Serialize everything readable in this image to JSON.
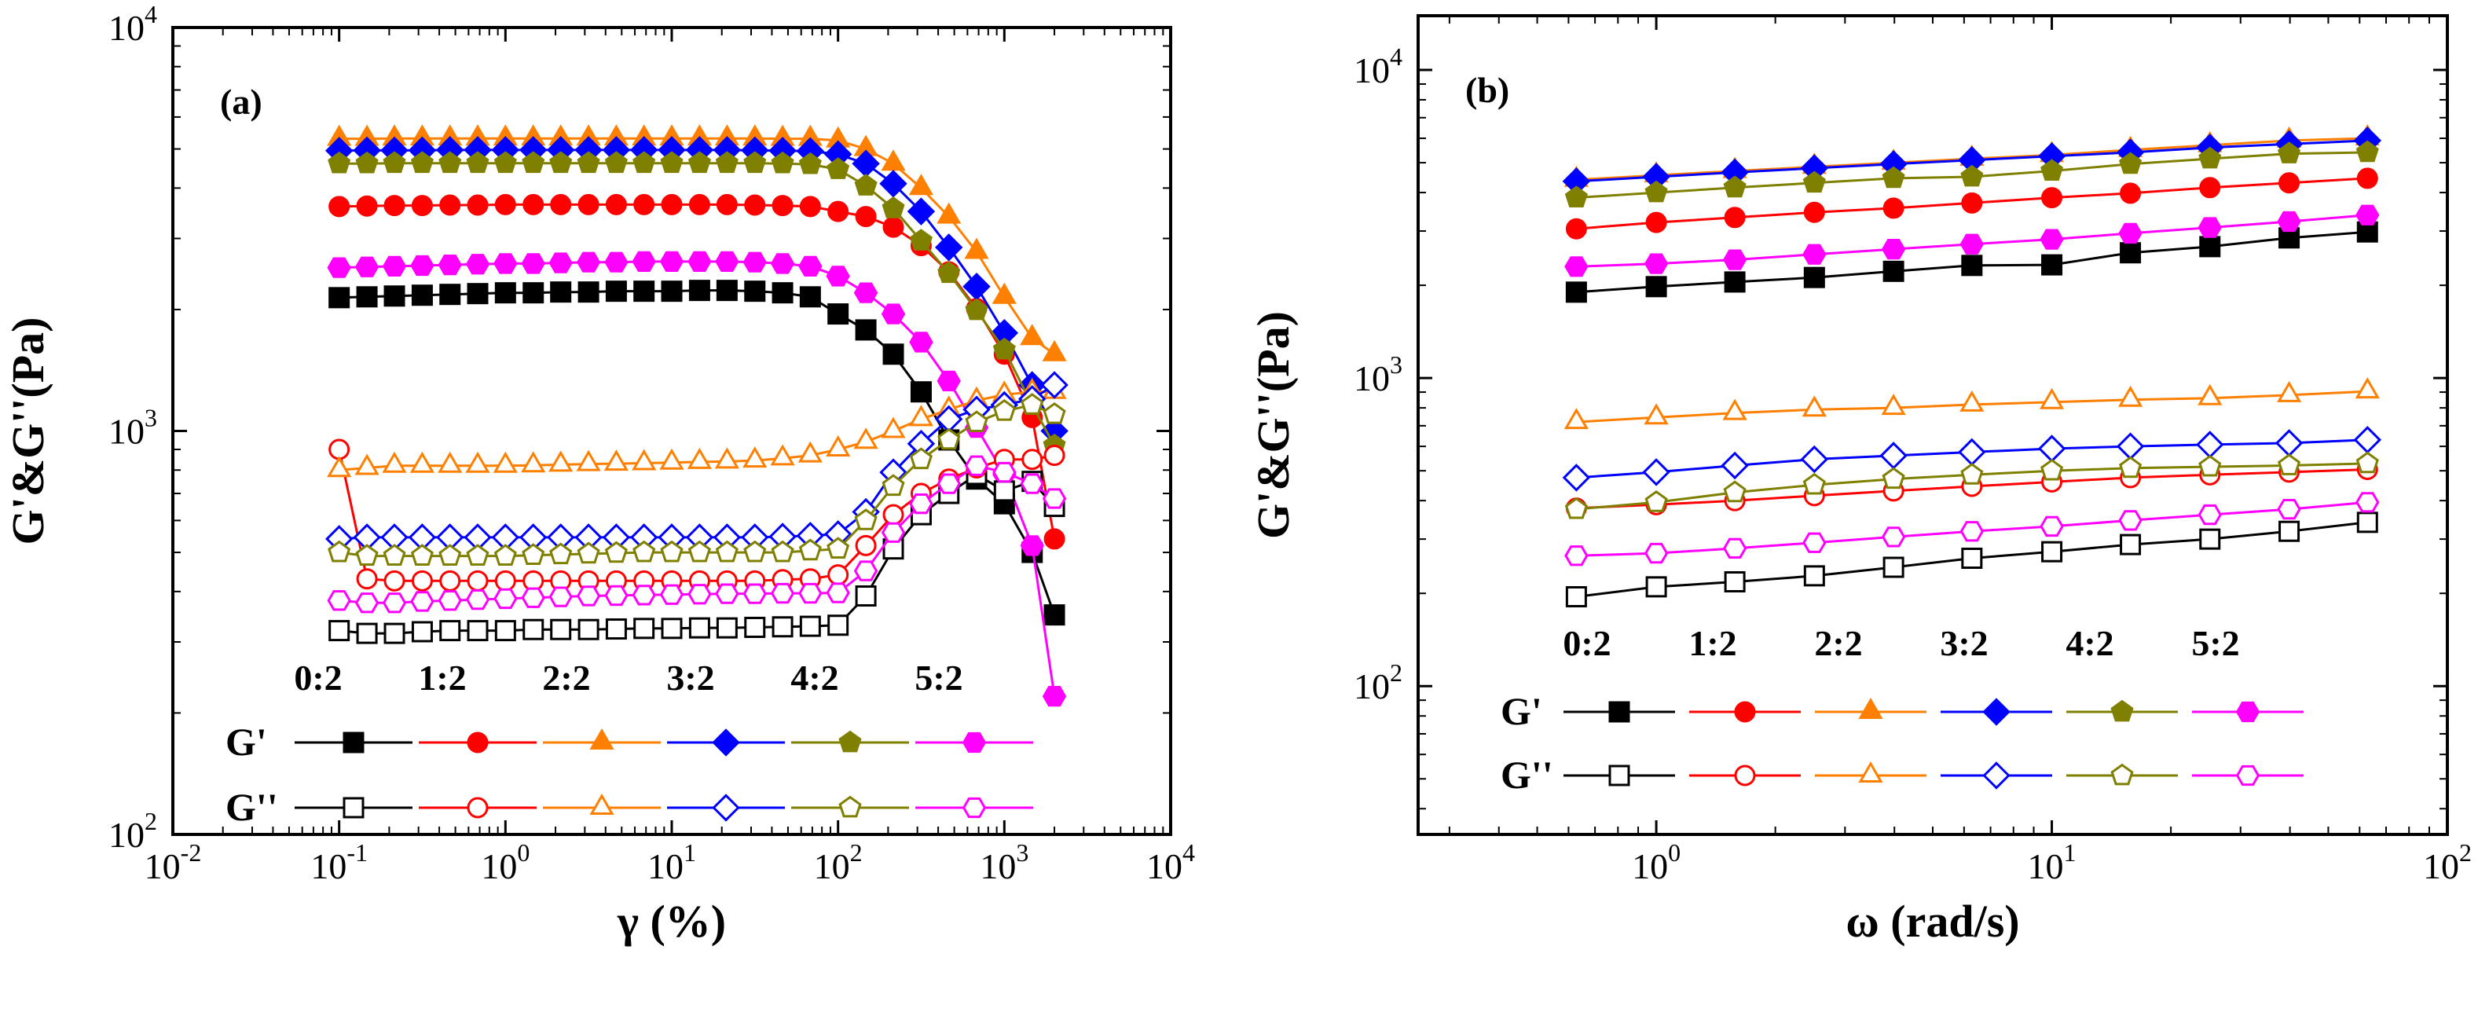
{
  "series_styles": [
    {
      "ratio": "0:2",
      "color": "#000000",
      "marker": "square"
    },
    {
      "ratio": "1:2",
      "color": "#ff0000",
      "marker": "circle"
    },
    {
      "ratio": "2:2",
      "color": "#ff8000",
      "marker": "triangle"
    },
    {
      "ratio": "3:2",
      "color": "#0000ff",
      "marker": "diamond"
    },
    {
      "ratio": "4:2",
      "color": "#808000",
      "marker": "pentagon"
    },
    {
      "ratio": "5:2",
      "color": "#ff00ff",
      "marker": "hexagon"
    }
  ],
  "chart_data": [
    {
      "panel_label": "(a)",
      "type": "line",
      "xscale": "log",
      "yscale": "log",
      "xlim": [
        0.01,
        10000
      ],
      "ylim": [
        100,
        10000
      ],
      "xticks": [
        {
          "base": "10",
          "exp": "-2"
        },
        {
          "base": "10",
          "exp": "-1"
        },
        {
          "base": "10",
          "exp": "0"
        },
        {
          "base": "10",
          "exp": "1"
        },
        {
          "base": "10",
          "exp": "2"
        },
        {
          "base": "10",
          "exp": "3"
        },
        {
          "base": "10",
          "exp": "4"
        }
      ],
      "yticks": [
        {
          "base": "10",
          "exp": "2"
        },
        {
          "base": "10",
          "exp": "3"
        },
        {
          "base": "10",
          "exp": "4"
        }
      ],
      "xlabel": "γ (%)",
      "ylabel": "G'&G''(Pa)",
      "legend": {
        "placement": "bottom-center",
        "ratios": [
          "0:2",
          "1:2",
          "2:2",
          "3:2",
          "4:2",
          "5:2"
        ],
        "row_labels": [
          "G'",
          "G''"
        ]
      },
      "x": [
        0.1,
        0.147,
        0.215,
        0.316,
        0.464,
        0.681,
        1,
        1.47,
        2.15,
        3.16,
        4.64,
        6.81,
        10,
        14.7,
        21.5,
        31.6,
        46.4,
        68.1,
        100,
        147,
        215,
        316,
        464,
        681,
        1000,
        1470,
        2000
      ],
      "series": [
        {
          "name": "G' 0:2",
          "ratio": "0:2",
          "modulus": "G'",
          "values": [
            2140,
            2150,
            2160,
            2170,
            2180,
            2190,
            2200,
            2200,
            2210,
            2210,
            2220,
            2220,
            2220,
            2230,
            2230,
            2220,
            2200,
            2150,
            1950,
            1780,
            1550,
            1250,
            950,
            760,
            660,
            500,
            350
          ]
        },
        {
          "name": "G' 1:2",
          "ratio": "1:2",
          "modulus": "G'",
          "values": [
            3600,
            3610,
            3620,
            3620,
            3630,
            3630,
            3640,
            3640,
            3640,
            3640,
            3640,
            3640,
            3640,
            3640,
            3640,
            3630,
            3620,
            3600,
            3500,
            3400,
            3200,
            2880,
            2480,
            2010,
            1550,
            1080,
            540
          ]
        },
        {
          "name": "G' 2:2",
          "ratio": "2:2",
          "modulus": "G'",
          "values": [
            5300,
            5300,
            5310,
            5310,
            5310,
            5310,
            5310,
            5310,
            5310,
            5310,
            5310,
            5310,
            5310,
            5310,
            5310,
            5310,
            5300,
            5300,
            5250,
            5000,
            4600,
            4000,
            3400,
            2780,
            2150,
            1700,
            1550
          ]
        },
        {
          "name": "G' 3:2",
          "ratio": "3:2",
          "modulus": "G'",
          "values": [
            4950,
            4960,
            4960,
            4960,
            4970,
            4970,
            4970,
            4970,
            4970,
            4970,
            4970,
            4970,
            4970,
            4970,
            4970,
            4960,
            4950,
            4940,
            4850,
            4600,
            4100,
            3500,
            2850,
            2280,
            1750,
            1300,
            1000
          ]
        },
        {
          "name": "G' 4:2",
          "ratio": "4:2",
          "modulus": "G'",
          "values": [
            4600,
            4600,
            4610,
            4610,
            4610,
            4610,
            4610,
            4610,
            4610,
            4610,
            4610,
            4610,
            4610,
            4610,
            4610,
            4610,
            4600,
            4580,
            4450,
            4050,
            3560,
            2960,
            2460,
            1990,
            1590,
            1160,
            920
          ]
        },
        {
          "name": "G' 5:2",
          "ratio": "5:2",
          "modulus": "G'",
          "values": [
            2540,
            2550,
            2560,
            2570,
            2580,
            2590,
            2600,
            2600,
            2610,
            2620,
            2620,
            2630,
            2630,
            2630,
            2630,
            2620,
            2600,
            2560,
            2420,
            2200,
            1950,
            1660,
            1330,
            1020,
            780,
            520,
            220
          ]
        },
        {
          "name": "G'' 0:2",
          "ratio": "0:2",
          "modulus": "G''",
          "values": [
            320,
            315,
            315,
            318,
            320,
            320,
            320,
            322,
            322,
            322,
            323,
            324,
            324,
            325,
            325,
            326,
            327,
            328,
            330,
            390,
            510,
            620,
            700,
            780,
            710,
            750,
            650
          ]
        },
        {
          "name": "G'' 1:2",
          "ratio": "1:2",
          "modulus": "G''",
          "values": [
            900,
            430,
            425,
            425,
            425,
            425,
            425,
            425,
            425,
            425,
            425,
            425,
            425,
            425,
            425,
            425,
            428,
            430,
            440,
            520,
            620,
            700,
            760,
            810,
            850,
            850,
            870
          ]
        },
        {
          "name": "G'' 2:2",
          "ratio": "2:2",
          "modulus": "G''",
          "values": [
            800,
            810,
            820,
            820,
            820,
            820,
            820,
            822,
            825,
            828,
            830,
            832,
            835,
            838,
            840,
            845,
            855,
            870,
            900,
            940,
            1000,
            1070,
            1130,
            1190,
            1230,
            1250,
            1250
          ]
        },
        {
          "name": "G'' 3:2",
          "ratio": "3:2",
          "modulus": "G''",
          "values": [
            540,
            545,
            545,
            545,
            545,
            545,
            545,
            545,
            545,
            545,
            545,
            545,
            545,
            545,
            545,
            545,
            547,
            550,
            555,
            630,
            790,
            930,
            1070,
            1130,
            1160,
            1200,
            1300
          ]
        },
        {
          "name": "G'' 4:2",
          "ratio": "4:2",
          "modulus": "G''",
          "values": [
            500,
            490,
            490,
            490,
            490,
            490,
            490,
            492,
            494,
            496,
            498,
            500,
            500,
            500,
            500,
            500,
            500,
            505,
            510,
            600,
            730,
            850,
            950,
            1050,
            1120,
            1160,
            1100
          ]
        },
        {
          "name": "G'' 5:2",
          "ratio": "5:2",
          "modulus": "G''",
          "values": [
            380,
            375,
            375,
            378,
            380,
            382,
            384,
            386,
            388,
            390,
            391,
            392,
            393,
            394,
            395,
            395,
            396,
            396,
            397,
            450,
            560,
            660,
            740,
            820,
            790,
            740,
            680
          ]
        }
      ]
    },
    {
      "panel_label": "(b)",
      "type": "line",
      "xscale": "log",
      "yscale": "log",
      "xlim": [
        0.25,
        100
      ],
      "ylim": [
        33,
        15000
      ],
      "xticks": [
        {
          "base": "10",
          "exp": "0"
        },
        {
          "base": "10",
          "exp": "1"
        },
        {
          "base": "10",
          "exp": "2"
        }
      ],
      "yticks": [
        {
          "base": "10",
          "exp": "2"
        },
        {
          "base": "10",
          "exp": "3"
        },
        {
          "base": "10",
          "exp": "4"
        }
      ],
      "xlabel": "ω (rad/s)",
      "ylabel": "G'&G''(Pa)",
      "legend": {
        "placement": "bottom-center",
        "ratios": [
          "0:2",
          "1:2",
          "2:2",
          "3:2",
          "4:2",
          "5:2"
        ],
        "row_labels": [
          "G'",
          "G''"
        ]
      },
      "x": [
        0.628,
        1,
        1.58,
        2.51,
        3.98,
        6.28,
        10,
        15.8,
        25.1,
        39.8,
        62.8
      ],
      "series": [
        {
          "name": "G' 0:2",
          "ratio": "0:2",
          "modulus": "G'",
          "values": [
            1900,
            1980,
            2050,
            2120,
            2220,
            2320,
            2330,
            2550,
            2670,
            2850,
            2980
          ]
        },
        {
          "name": "G' 1:2",
          "ratio": "1:2",
          "modulus": "G'",
          "values": [
            3050,
            3200,
            3320,
            3450,
            3560,
            3700,
            3850,
            3980,
            4150,
            4300,
            4450
          ]
        },
        {
          "name": "G' 2:2",
          "ratio": "2:2",
          "modulus": "G'",
          "values": [
            4400,
            4550,
            4700,
            4850,
            5000,
            5150,
            5300,
            5500,
            5700,
            5900,
            6000
          ]
        },
        {
          "name": "G' 3:2",
          "ratio": "3:2",
          "modulus": "G'",
          "values": [
            4350,
            4500,
            4650,
            4800,
            4950,
            5100,
            5250,
            5400,
            5600,
            5750,
            5900
          ]
        },
        {
          "name": "G' 4:2",
          "ratio": "4:2",
          "modulus": "G'",
          "values": [
            3850,
            4000,
            4150,
            4300,
            4450,
            4500,
            4700,
            4950,
            5150,
            5350,
            5400
          ]
        },
        {
          "name": "G' 5:2",
          "ratio": "5:2",
          "modulus": "G'",
          "values": [
            2300,
            2350,
            2420,
            2520,
            2620,
            2720,
            2820,
            2950,
            3080,
            3220,
            3380
          ]
        },
        {
          "name": "G'' 0:2",
          "ratio": "0:2",
          "modulus": "G''",
          "values": [
            195,
            210,
            218,
            228,
            243,
            260,
            273,
            288,
            300,
            318,
            340
          ]
        },
        {
          "name": "G'' 1:2",
          "ratio": "1:2",
          "modulus": "G''",
          "values": [
            378,
            388,
            400,
            415,
            430,
            445,
            460,
            475,
            485,
            495,
            505
          ]
        },
        {
          "name": "G'' 2:2",
          "ratio": "2:2",
          "modulus": "G''",
          "values": [
            720,
            745,
            770,
            790,
            800,
            820,
            835,
            850,
            860,
            880,
            905
          ]
        },
        {
          "name": "G'' 3:2",
          "ratio": "3:2",
          "modulus": "G''",
          "values": [
            475,
            495,
            520,
            545,
            560,
            575,
            590,
            600,
            608,
            615,
            630
          ]
        },
        {
          "name": "G'' 4:2",
          "ratio": "4:2",
          "modulus": "G''",
          "values": [
            375,
            395,
            425,
            450,
            470,
            485,
            500,
            510,
            515,
            520,
            528
          ]
        },
        {
          "name": "G'' 5:2",
          "ratio": "5:2",
          "modulus": "G''",
          "values": [
            265,
            270,
            280,
            292,
            305,
            318,
            330,
            345,
            360,
            375,
            395
          ]
        }
      ]
    }
  ]
}
